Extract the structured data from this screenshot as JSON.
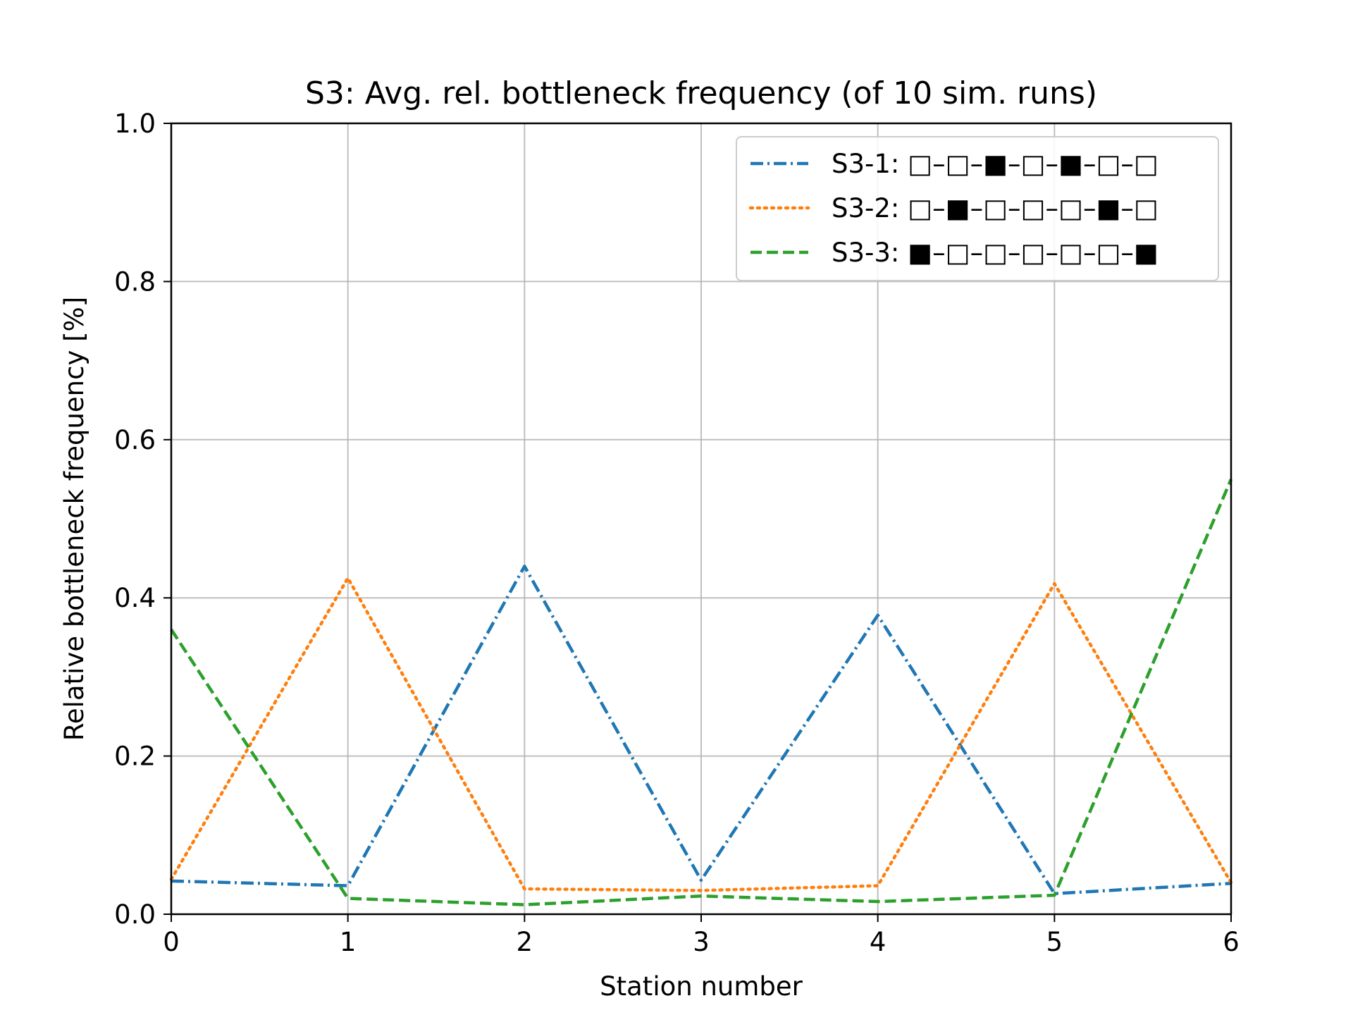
{
  "chart_data": {
    "type": "line",
    "title": "S3: Avg. rel. bottleneck frequency (of 10 sim. runs)",
    "xlabel": "Station number",
    "ylabel": "Relative bottleneck frequency [%]",
    "xlim": [
      0,
      6
    ],
    "ylim": [
      0.0,
      1.0
    ],
    "x": [
      0,
      1,
      2,
      3,
      4,
      5,
      6
    ],
    "xticks": [
      "0",
      "1",
      "2",
      "3",
      "4",
      "5",
      "6"
    ],
    "yticks": [
      "0.0",
      "0.2",
      "0.4",
      "0.6",
      "0.8",
      "1.0"
    ],
    "grid": true,
    "legend_position": "top-right",
    "series": [
      {
        "name": "S3-1: □–□–■–□–■–□–□",
        "values": [
          0.042,
          0.036,
          0.44,
          0.043,
          0.378,
          0.026,
          0.039
        ],
        "color": "#1f77b4",
        "linestyle": "dashdot"
      },
      {
        "name": "S3-2: □–■–□–□–□–■–□",
        "values": [
          0.044,
          0.425,
          0.032,
          0.03,
          0.036,
          0.418,
          0.04
        ],
        "color": "#ff7f0e",
        "linestyle": "dotted"
      },
      {
        "name": "S3-3: ■–□–□–□–□–□–■",
        "values": [
          0.36,
          0.02,
          0.012,
          0.023,
          0.016,
          0.024,
          0.55
        ],
        "color": "#2ca02c",
        "linestyle": "dashed"
      }
    ]
  }
}
